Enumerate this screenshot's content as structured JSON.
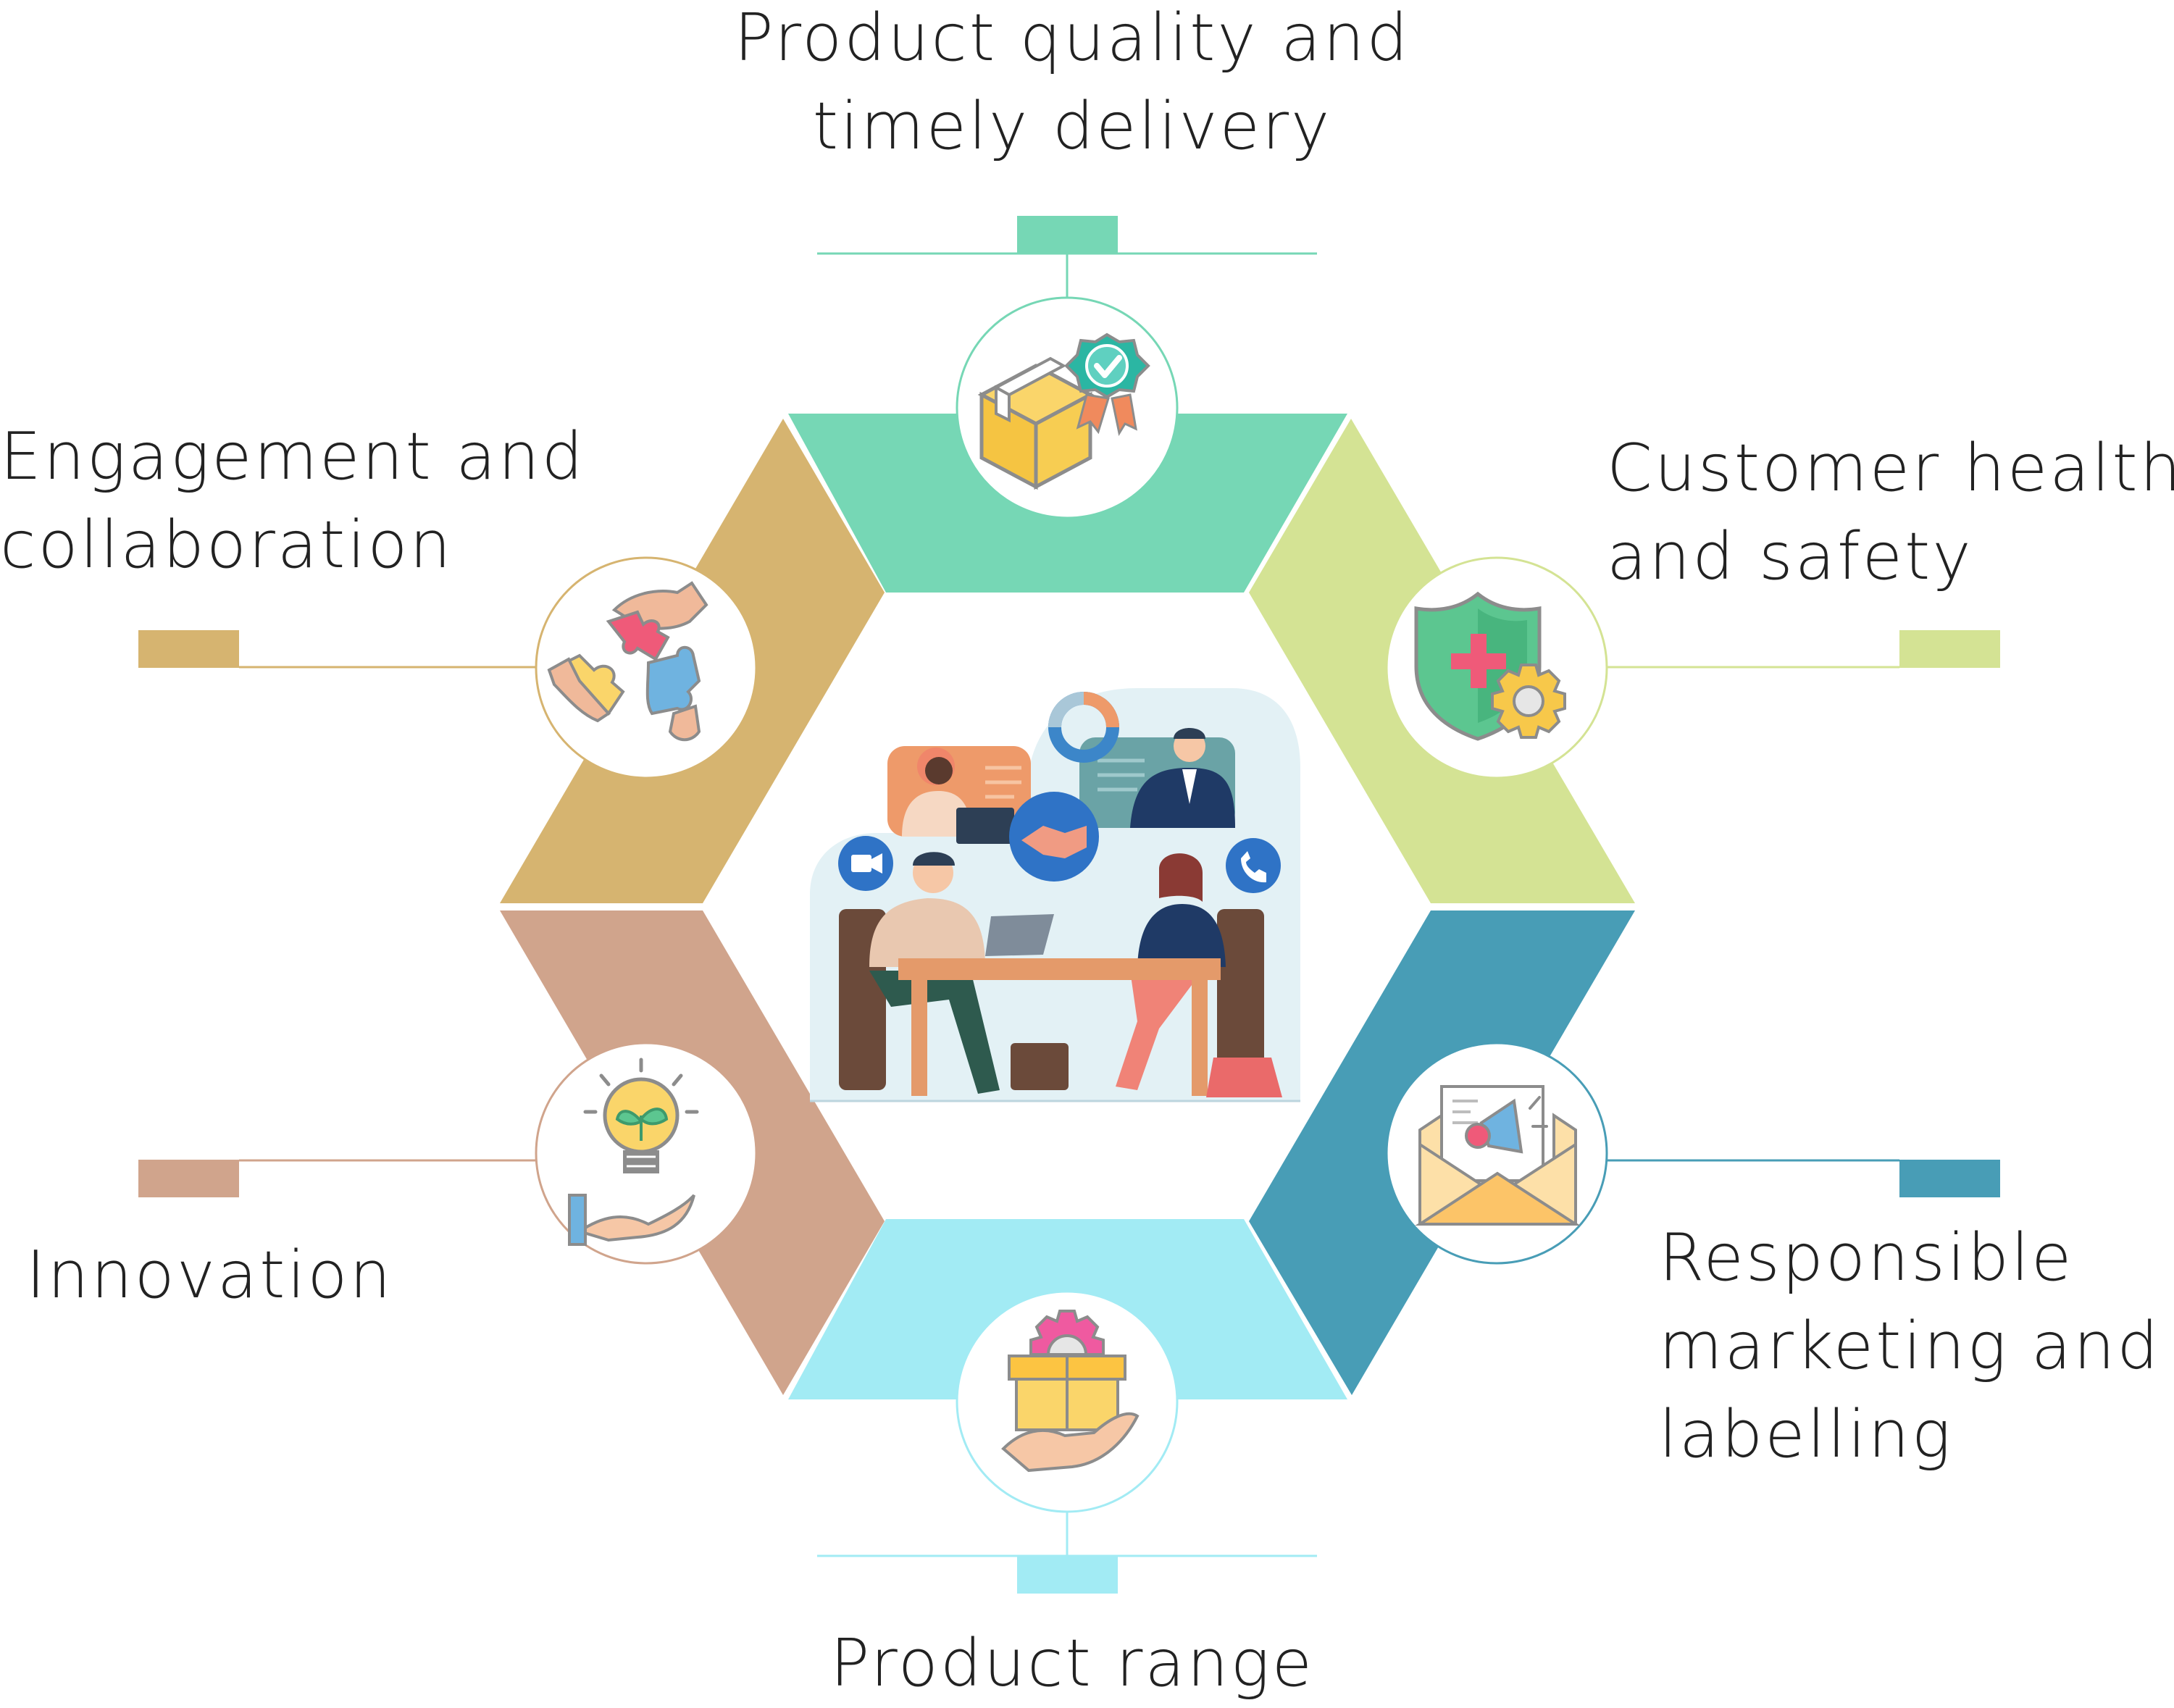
{
  "segments": [
    {
      "id": "top",
      "lines": [
        "Product quality and",
        "timely delivery"
      ],
      "color": "#76d7b5",
      "icon": "box-badge-icon"
    },
    {
      "id": "upper-right",
      "lines": [
        "Customer health",
        "and safety"
      ],
      "color": "#d4e394",
      "icon": "shield-gear-icon"
    },
    {
      "id": "lower-right",
      "lines": [
        "Responsible",
        "marketing and",
        "labelling"
      ],
      "color": "#489db6",
      "icon": "envelope-megaphone-icon"
    },
    {
      "id": "bottom",
      "lines": [
        "Product range"
      ],
      "color": "#a2ebf4",
      "icon": "box-hand-icon"
    },
    {
      "id": "lower-left",
      "lines": [
        "Innovation"
      ],
      "color": "#d0a48c",
      "icon": "bulb-hand-icon"
    },
    {
      "id": "upper-left",
      "lines": [
        "Engagement and",
        "collaboration"
      ],
      "color": "#d6b470",
      "icon": "puzzle-hands-icon"
    }
  ],
  "center": {
    "illustration": "team-meeting-illustration"
  }
}
